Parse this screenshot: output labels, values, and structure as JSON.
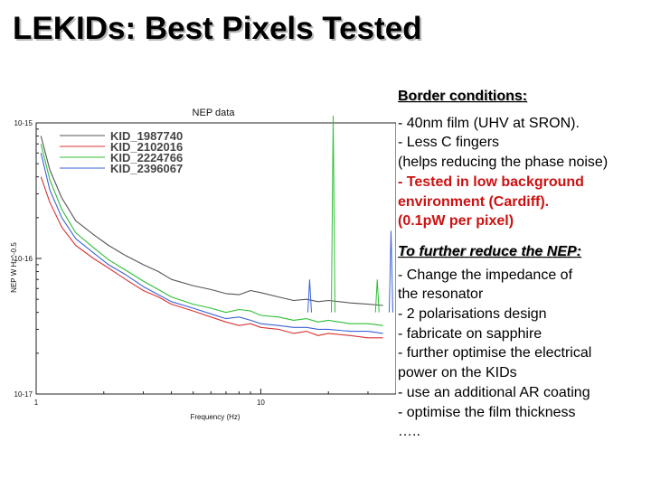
{
  "slide": {
    "title": "LEKIDs: Best Pixels Tested"
  },
  "panel": {
    "border_heading": "Border conditions:",
    "border_lines": [
      "- 40nm film (UHV at SRON).",
      "- Less C fingers",
      "(helps reducing the phase noise)"
    ],
    "highlight_lines": [
      "- Tested in low background",
      "environment (Cardiff).",
      "(0.1pW per pixel)"
    ],
    "highlight_color": "#cc1111",
    "reduce_heading": "To further reduce the NEP:",
    "reduce_lines": [
      "- Change the impedance of",
      "the resonator",
      "- 2 polarisations design",
      "- fabricate on sapphire",
      "- further optimise the electrical",
      "power on the KIDs",
      "- use an additional AR coating",
      "- optimise the film thickness",
      "….."
    ]
  },
  "chart_data": {
    "type": "line",
    "title": "NEP data",
    "xlabel": "Frequency (Hz)",
    "ylabel": "NEP W Hz^-0.5",
    "x_scale": "log",
    "y_scale": "log",
    "xlim": [
      1,
      40
    ],
    "ylim": [
      1e-17,
      1e-15
    ],
    "x_ticks": [
      {
        "value": 1,
        "label": "1"
      },
      {
        "value": 10,
        "label": "10"
      }
    ],
    "y_ticks": [
      {
        "value": 1e-17,
        "label": "10-17"
      },
      {
        "value": 1e-16,
        "label": "10-16"
      },
      {
        "value": 1e-15,
        "label": "10-15"
      }
    ],
    "grid": false,
    "legend_position": "top-left",
    "series": [
      {
        "name": "KID_1987740",
        "color": "#555555",
        "x": [
          1.05,
          1.15,
          1.3,
          1.5,
          1.8,
          2.1,
          2.5,
          3,
          3.5,
          4,
          5,
          6,
          7,
          8,
          9,
          10,
          12,
          14,
          16,
          18,
          20,
          25,
          30,
          35
        ],
        "y": [
          8e-16,
          4.5e-16,
          2.8e-16,
          1.9e-16,
          1.5e-16,
          1.25e-16,
          1.05e-16,
          9e-17,
          8e-17,
          7e-17,
          6.3e-17,
          5.9e-17,
          5.5e-17,
          5.4e-17,
          5.8e-17,
          5.6e-17,
          5.2e-17,
          4.9e-17,
          5e-17,
          4.8e-17,
          4.9e-17,
          4.7e-17,
          4.6e-17,
          4.5e-17
        ]
      },
      {
        "name": "KID_2102016",
        "color": "#d83434",
        "x": [
          1.05,
          1.15,
          1.3,
          1.5,
          1.8,
          2.1,
          2.5,
          3,
          3.5,
          4,
          5,
          6,
          7,
          8,
          9,
          10,
          12,
          14,
          16,
          18,
          20,
          25,
          30,
          35
        ],
        "y": [
          4e-16,
          2.6e-16,
          1.7e-16,
          1.25e-16,
          1e-16,
          8.5e-17,
          7e-17,
          5.8e-17,
          5.2e-17,
          4.6e-17,
          4.1e-17,
          3.7e-17,
          3.4e-17,
          3.2e-17,
          3.3e-17,
          3.1e-17,
          3e-17,
          2.8e-17,
          2.9e-17,
          2.7e-17,
          2.8e-17,
          2.7e-17,
          2.6e-17,
          2.6e-17
        ]
      },
      {
        "name": "KID_2224766",
        "color": "#2fbf35",
        "x": [
          1.05,
          1.15,
          1.3,
          1.5,
          1.8,
          2.1,
          2.5,
          3,
          3.5,
          4,
          5,
          6,
          7,
          8,
          9,
          10,
          12,
          14,
          16,
          18,
          20,
          25,
          30,
          35
        ],
        "y": [
          7e-16,
          3.8e-16,
          2.3e-16,
          1.55e-16,
          1.2e-16,
          9.8e-17,
          8.2e-17,
          6.8e-17,
          5.9e-17,
          5.2e-17,
          4.6e-17,
          4.3e-17,
          4e-17,
          4.2e-17,
          4.1e-17,
          3.8e-17,
          3.7e-17,
          3.5e-17,
          3.6e-17,
          3.4e-17,
          3.5e-17,
          3.3e-17,
          3.3e-17,
          3.2e-17
        ]
      },
      {
        "name": "KID_2396067",
        "color": "#3c62d8",
        "x": [
          1.05,
          1.15,
          1.3,
          1.5,
          1.8,
          2.1,
          2.5,
          3,
          3.5,
          4,
          5,
          6,
          7,
          8,
          9,
          10,
          12,
          14,
          16,
          18,
          20,
          25,
          30,
          35
        ],
        "y": [
          6e-16,
          3.2e-16,
          2e-16,
          1.4e-16,
          1.1e-16,
          9e-17,
          7.6e-17,
          6.2e-17,
          5.4e-17,
          4.8e-17,
          4.3e-17,
          3.9e-17,
          3.6e-17,
          3.7e-17,
          3.5e-17,
          3.3e-17,
          3.2e-17,
          3.1e-17,
          3.1e-17,
          3e-17,
          3e-17,
          2.9e-17,
          2.9e-17,
          2.8e-17
        ]
      }
    ],
    "spikes": [
      {
        "x": 21,
        "y": 2.4e-15,
        "color": "#2fbf35"
      },
      {
        "x": 16.5,
        "y": 7e-17,
        "color": "#3c62d8"
      },
      {
        "x": 33,
        "y": 7e-17,
        "color": "#2fbf35"
      },
      {
        "x": 38,
        "y": 1.6e-16,
        "color": "#3c62d8"
      }
    ]
  }
}
